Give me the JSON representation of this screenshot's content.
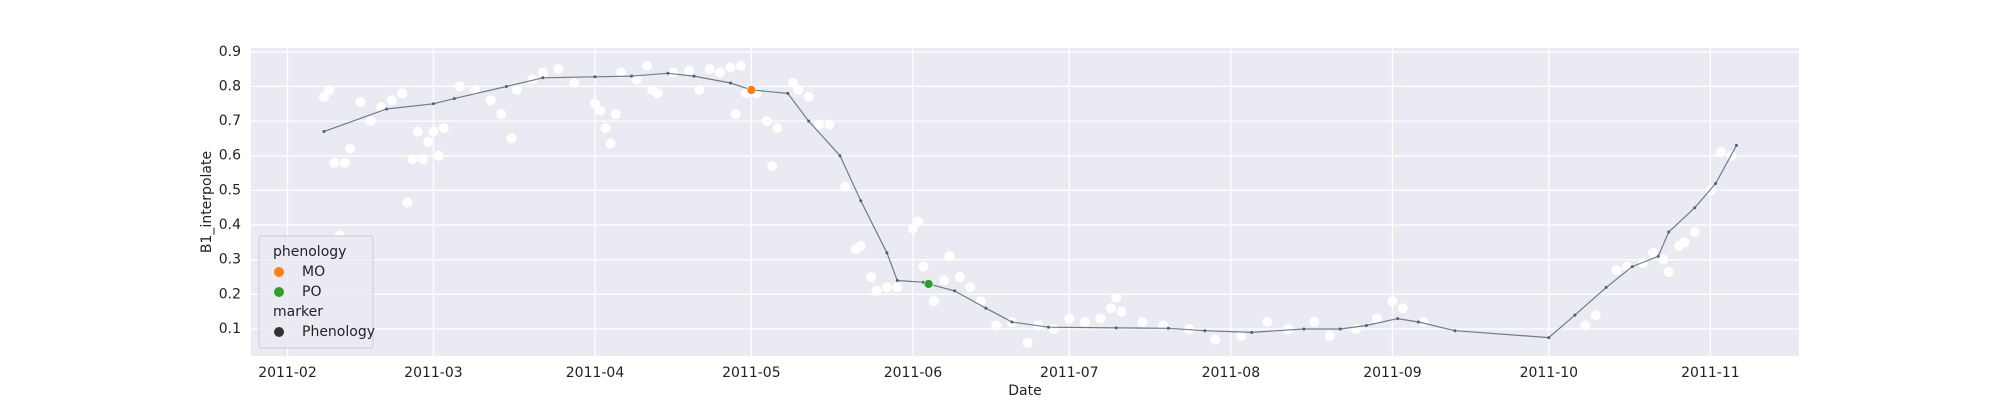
{
  "chart_data": {
    "type": "line",
    "xlabel": "Date",
    "ylabel": "B1_interpolate",
    "xlim": [
      "2011-01-25",
      "2011-11-18"
    ],
    "xticks": [
      "2011-02",
      "2011-03",
      "2011-04",
      "2011-05",
      "2011-06",
      "2011-07",
      "2011-08",
      "2011-09",
      "2011-10",
      "2011-11"
    ],
    "ylim": [
      0.022,
      0.911
    ],
    "yticks": [
      0.1,
      0.2,
      0.3,
      0.4,
      0.5,
      0.6,
      0.7,
      0.8,
      0.9
    ],
    "grid": true,
    "background": "#eaeaf2",
    "legend": {
      "position": "lower left",
      "title": "phenology",
      "marker_title": "marker",
      "marker_label": "Phenology",
      "marker_color": "#333333"
    },
    "series": [
      {
        "type": "scatter",
        "color": "#ffffff",
        "x": [
          "2011-02-08",
          "2011-02-09",
          "2011-02-10",
          "2011-02-11",
          "2011-02-12",
          "2011-02-13",
          "2011-02-15",
          "2011-02-17",
          "2011-02-19",
          "2011-02-21",
          "2011-02-23",
          "2011-02-24",
          "2011-02-25",
          "2011-02-26",
          "2011-02-27",
          "2011-02-28",
          "2011-03-01",
          "2011-03-02",
          "2011-03-03",
          "2011-03-06",
          "2011-03-09",
          "2011-03-12",
          "2011-03-14",
          "2011-03-16",
          "2011-03-17",
          "2011-03-20",
          "2011-03-22",
          "2011-03-25",
          "2011-03-28",
          "2011-04-01",
          "2011-04-02",
          "2011-04-03",
          "2011-04-04",
          "2011-04-05",
          "2011-04-06",
          "2011-04-09",
          "2011-04-11",
          "2011-04-12",
          "2011-04-13",
          "2011-04-16",
          "2011-04-19",
          "2011-04-21",
          "2011-04-23",
          "2011-04-25",
          "2011-04-27",
          "2011-04-28",
          "2011-04-29",
          "2011-04-30",
          "2011-05-02",
          "2011-05-04",
          "2011-05-05",
          "2011-05-06",
          "2011-05-09",
          "2011-05-10",
          "2011-05-12",
          "2011-05-14",
          "2011-05-16",
          "2011-05-19",
          "2011-05-21",
          "2011-05-22",
          "2011-05-24",
          "2011-05-25",
          "2011-05-27",
          "2011-05-29",
          "2011-06-01",
          "2011-06-02",
          "2011-06-03",
          "2011-06-05",
          "2011-06-07",
          "2011-06-08",
          "2011-06-10",
          "2011-06-12",
          "2011-06-14",
          "2011-06-17",
          "2011-06-20",
          "2011-06-23",
          "2011-06-25",
          "2011-06-28",
          "2011-07-01",
          "2011-07-04",
          "2011-07-07",
          "2011-07-09",
          "2011-07-10",
          "2011-07-11",
          "2011-07-15",
          "2011-07-19",
          "2011-07-24",
          "2011-07-29",
          "2011-08-03",
          "2011-08-08",
          "2011-08-12",
          "2011-08-17",
          "2011-08-20",
          "2011-08-25",
          "2011-08-29",
          "2011-09-01",
          "2011-09-03",
          "2011-09-07",
          "2011-10-08",
          "2011-10-10",
          "2011-10-14",
          "2011-10-16",
          "2011-10-19",
          "2011-10-21",
          "2011-10-23",
          "2011-10-24",
          "2011-10-26",
          "2011-10-27",
          "2011-10-29",
          "2011-11-01",
          "2011-11-03",
          "2011-11-05"
        ],
        "values": [
          0.77,
          0.79,
          0.58,
          0.37,
          0.58,
          0.62,
          0.755,
          0.7,
          0.74,
          0.76,
          0.78,
          0.465,
          0.59,
          0.67,
          0.59,
          0.64,
          0.67,
          0.6,
          0.68,
          0.8,
          0.79,
          0.76,
          0.72,
          0.65,
          0.79,
          0.82,
          0.84,
          0.85,
          0.81,
          0.75,
          0.73,
          0.68,
          0.635,
          0.72,
          0.84,
          0.82,
          0.86,
          0.79,
          0.78,
          0.84,
          0.845,
          0.79,
          0.85,
          0.84,
          0.855,
          0.72,
          0.86,
          0.78,
          0.78,
          0.7,
          0.57,
          0.68,
          0.81,
          0.79,
          0.77,
          0.69,
          0.69,
          0.51,
          0.33,
          0.34,
          0.25,
          0.21,
          0.22,
          0.22,
          0.39,
          0.41,
          0.28,
          0.18,
          0.24,
          0.31,
          0.25,
          0.22,
          0.18,
          0.11,
          0.12,
          0.06,
          0.11,
          0.1,
          0.13,
          0.12,
          0.13,
          0.16,
          0.19,
          0.15,
          0.12,
          0.11,
          0.1,
          0.07,
          0.08,
          0.12,
          0.1,
          0.12,
          0.08,
          0.1,
          0.13,
          0.18,
          0.16,
          0.12,
          0.11,
          0.14,
          0.27,
          0.28,
          0.29,
          0.32,
          0.3,
          0.265,
          0.34,
          0.35,
          0.38,
          0.5,
          0.61,
          0.6
        ]
      },
      {
        "type": "line",
        "color": "#4a6274",
        "x": [
          "2011-02-08",
          "2011-02-20",
          "2011-03-01",
          "2011-03-05",
          "2011-03-15",
          "2011-03-22",
          "2011-04-01",
          "2011-04-08",
          "2011-04-15",
          "2011-04-20",
          "2011-04-27",
          "2011-05-01",
          "2011-05-08",
          "2011-05-12",
          "2011-05-18",
          "2011-05-22",
          "2011-05-27",
          "2011-05-29",
          "2011-06-03",
          "2011-06-04",
          "2011-06-09",
          "2011-06-15",
          "2011-06-20",
          "2011-06-27",
          "2011-07-10",
          "2011-07-20",
          "2011-07-27",
          "2011-08-05",
          "2011-08-15",
          "2011-08-22",
          "2011-08-27",
          "2011-09-02",
          "2011-09-06",
          "2011-09-13",
          "2011-10-01",
          "2011-10-06",
          "2011-10-12",
          "2011-10-17",
          "2011-10-22",
          "2011-10-24",
          "2011-10-29",
          "2011-11-02",
          "2011-11-06"
        ],
        "values": [
          0.67,
          0.735,
          0.75,
          0.765,
          0.8,
          0.825,
          0.828,
          0.83,
          0.838,
          0.83,
          0.81,
          0.79,
          0.78,
          0.7,
          0.6,
          0.47,
          0.32,
          0.24,
          0.235,
          0.23,
          0.21,
          0.16,
          0.12,
          0.105,
          0.103,
          0.102,
          0.095,
          0.09,
          0.1,
          0.1,
          0.11,
          0.13,
          0.12,
          0.095,
          0.075,
          0.14,
          0.22,
          0.28,
          0.31,
          0.38,
          0.45,
          0.52,
          0.63
        ]
      },
      {
        "type": "scatter",
        "name": "MO",
        "color": "#ff7f0e",
        "x": [
          "2011-05-01"
        ],
        "values": [
          0.79
        ]
      },
      {
        "type": "scatter",
        "name": "PO",
        "color": "#2ca02c",
        "x": [
          "2011-06-04"
        ],
        "values": [
          0.23
        ]
      }
    ]
  }
}
